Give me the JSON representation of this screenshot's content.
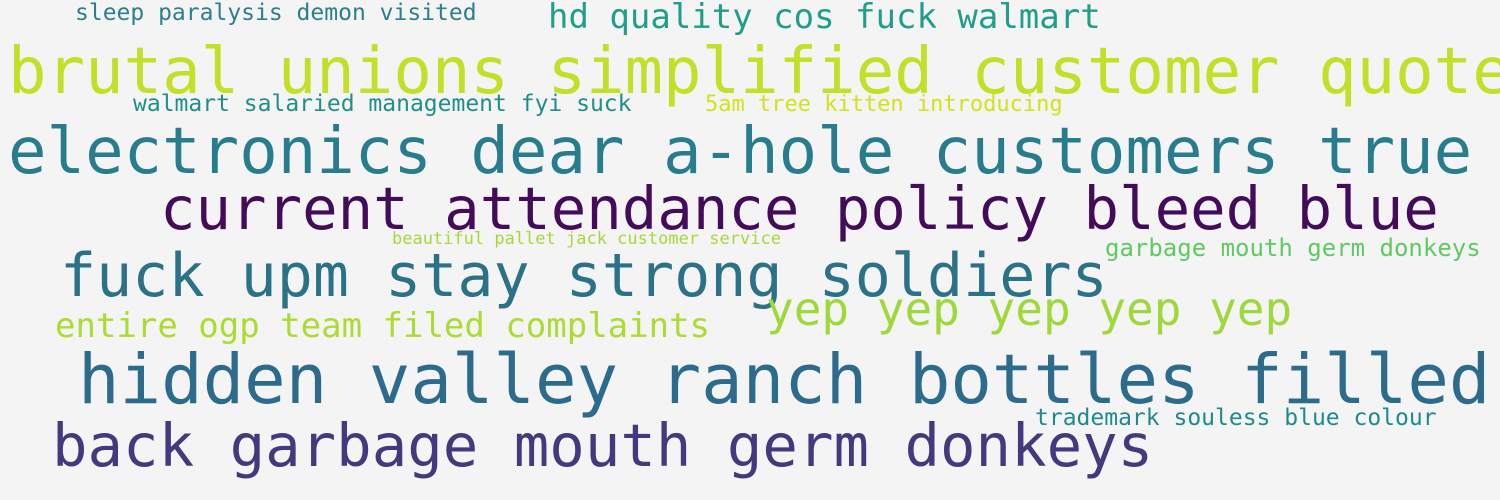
{
  "word_cloud": {
    "phrases": {
      "sleep": {
        "text": "sleep paralysis demon visited",
        "color": "#2c7f8c"
      },
      "hd": {
        "text": "hd quality cos fuck walmart",
        "color": "#1f9e89"
      },
      "brutal": {
        "text": "brutal  unions simplified customer quote",
        "color": "#c3df27"
      },
      "walmart": {
        "text": "walmart salaried management fyi suck",
        "color": "#1f8f8c"
      },
      "five_am": {
        "text": "5am tree kitten introducing",
        "color": "#d2e21b"
      },
      "electronics": {
        "text": "electronics dear a-hole customers true",
        "color": "#277d8e"
      },
      "current": {
        "text": "current attendance policy bleed blue",
        "color": "#440b5b"
      },
      "beautiful": {
        "text": "beautiful pallet jack customer service",
        "color": "#a7d73d"
      },
      "garbage_small": {
        "text": "garbage mouth germ donkeys",
        "color": "#5fca61"
      },
      "fuck_upm": {
        "text": "fuck upm stay strong soldiers",
        "color": "#2b7288"
      },
      "yep": {
        "text": "yep yep yep yep yep",
        "color": "#9dd93b"
      },
      "entire": {
        "text": "entire ogp team filed complaints",
        "color": "#abdc31"
      },
      "hidden": {
        "text": "hidden valley ranch bottles filled",
        "color": "#2d6b8d"
      },
      "trademark": {
        "text": "trademark souless blue colour",
        "color": "#1f8a8c"
      },
      "back": {
        "text": "back garbage mouth germ donkeys",
        "color": "#45387f"
      }
    }
  }
}
